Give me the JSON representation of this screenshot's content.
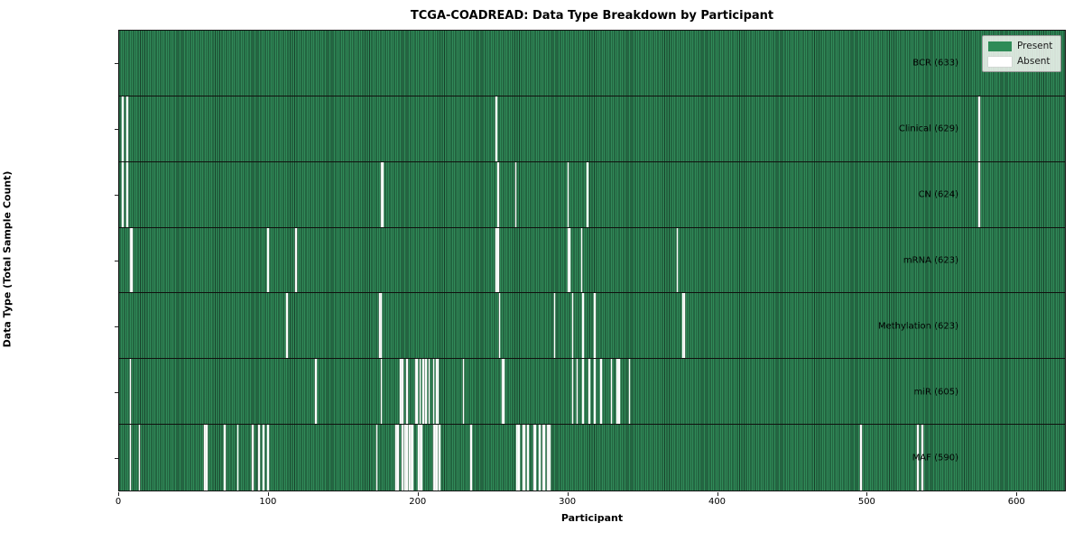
{
  "chart_data": {
    "type": "heatmap",
    "title": "TCGA-COADREAD: Data Type Breakdown by Participant",
    "xlabel": "Participant",
    "ylabel": "Data Type (Total Sample Count)",
    "x_ticks": [
      0,
      100,
      200,
      300,
      400,
      500,
      600
    ],
    "xlim": [
      0,
      633
    ],
    "n_participants": 633,
    "grid": false,
    "legend_position": "upper right",
    "legend": {
      "entries": [
        {
          "label": "Present",
          "color": "#2e8b57"
        },
        {
          "label": "Absent",
          "color": "#ffffff"
        }
      ]
    },
    "colors": {
      "present": "#2e8b57",
      "bar_edge_dark": "#173f29",
      "absent": "#ffffff",
      "row_separator": "#10100e"
    },
    "rows": [
      {
        "label": "BCR (633)",
        "data_type": "BCR",
        "sample_count": 633,
        "absent_participants": []
      },
      {
        "label": "Clinical (629)",
        "data_type": "Clinical",
        "sample_count": 629,
        "absent_participants": [
          2,
          5,
          252,
          575
        ]
      },
      {
        "label": "CN (624)",
        "data_type": "CN",
        "sample_count": 624,
        "absent_participants": [
          2,
          5,
          175,
          176,
          253,
          265,
          300,
          313,
          575
        ]
      },
      {
        "label": "mRNA (623)",
        "data_type": "mRNA",
        "sample_count": 623,
        "absent_participants": [
          7,
          8,
          99,
          118,
          252,
          253,
          300,
          301,
          309,
          373
        ]
      },
      {
        "label": "Methylation (623)",
        "data_type": "Methylation",
        "sample_count": 623,
        "absent_participants": [
          112,
          174,
          175,
          254,
          291,
          303,
          310,
          318,
          377,
          378
        ]
      },
      {
        "label": "miR (605)",
        "data_type": "miR",
        "sample_count": 605,
        "absent_participants": [
          7,
          131,
          175,
          188,
          189,
          192,
          198,
          199,
          201,
          203,
          205,
          207,
          210,
          212,
          213,
          230,
          256,
          257,
          303,
          306,
          310,
          314,
          318,
          322,
          329,
          333,
          334,
          341
        ]
      },
      {
        "label": "MAF (590)",
        "data_type": "MAF",
        "sample_count": 590,
        "absent_participants": [
          7,
          13,
          57,
          58,
          70,
          79,
          89,
          93,
          96,
          99,
          172,
          185,
          186,
          189,
          191,
          192,
          194,
          195,
          196,
          200,
          201,
          202,
          210,
          211,
          212,
          214,
          235,
          266,
          267,
          270,
          271,
          273,
          277,
          278,
          281,
          283,
          284,
          286,
          287,
          288,
          496,
          534,
          537
        ]
      }
    ]
  }
}
